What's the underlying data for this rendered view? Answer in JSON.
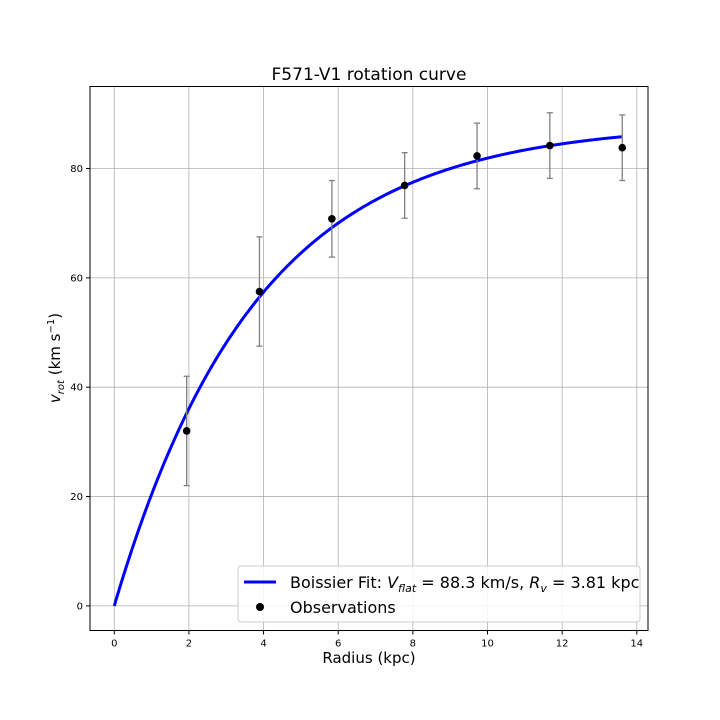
{
  "chart_data": {
    "type": "line",
    "title": "F571-V1 rotation curve",
    "xlabel": "Radius (kpc)",
    "ylabel": "v_rot (km s^-1)",
    "xlim": [
      -0.65,
      14.3
    ],
    "ylim": [
      -4.5,
      95
    ],
    "xticks": [
      0,
      2,
      4,
      6,
      8,
      10,
      12,
      14
    ],
    "yticks": [
      0,
      20,
      40,
      60,
      80
    ],
    "grid": true,
    "legend_position": "bottom-right",
    "fit": {
      "name": "Boissier Fit: V_flat = 88.3 km/s, R_v = 3.81 kpc",
      "model": "V_flat * (1 - exp(-r / R_v))",
      "V_flat": 88.3,
      "R_v": 3.81,
      "r_range": [
        0,
        13.6
      ],
      "color": "#0000ff"
    },
    "observations": {
      "name": "Observations",
      "color": "#000000",
      "errorbar_color": "#808080",
      "x": [
        1.94,
        3.89,
        5.83,
        7.78,
        9.72,
        11.67,
        13.61
      ],
      "y": [
        32.0,
        57.5,
        70.8,
        76.9,
        82.3,
        84.2,
        83.8
      ],
      "err": [
        10.0,
        10.0,
        7.0,
        6.0,
        6.0,
        6.0,
        6.0
      ]
    }
  }
}
